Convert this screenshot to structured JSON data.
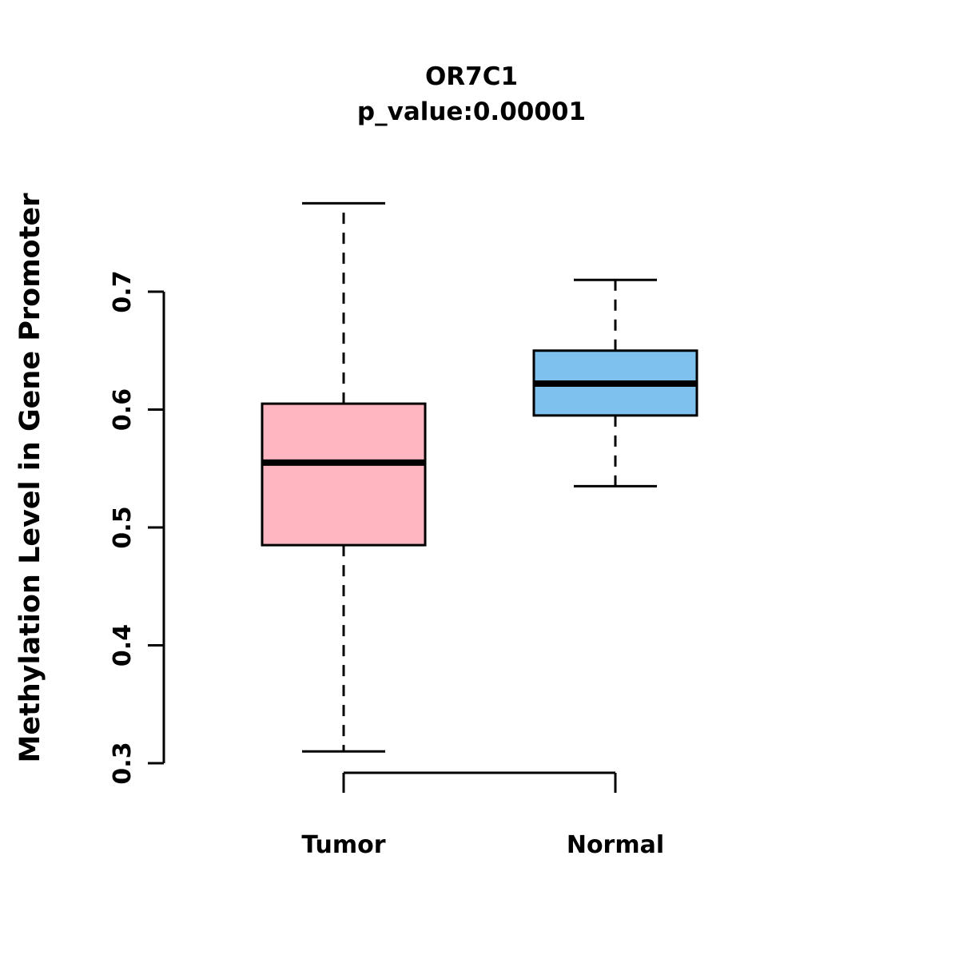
{
  "title": "OR7C1",
  "subtitle": "p_value:0.00001",
  "ylabel": "Methylation Level in Gene Promoter",
  "chart_data": {
    "type": "boxplot",
    "title": "OR7C1",
    "subtitle": "p_value:0.00001",
    "ylabel": "Methylation Level in Gene Promoter",
    "categories": [
      "Tumor",
      "Normal"
    ],
    "yticks": [
      0.3,
      0.4,
      0.5,
      0.6,
      0.7
    ],
    "ylim": [
      0.3,
      0.7
    ],
    "p_value": 1e-05,
    "series": [
      {
        "name": "Tumor",
        "color": "#FFB6C1",
        "whisker_low": 0.31,
        "q1": 0.485,
        "median": 0.555,
        "q3": 0.605,
        "whisker_high": 0.775
      },
      {
        "name": "Normal",
        "color": "#7EC0EE",
        "whisker_low": 0.535,
        "q1": 0.595,
        "median": 0.622,
        "q3": 0.65,
        "whisker_high": 0.71
      }
    ],
    "legend": "none",
    "grid": false
  }
}
